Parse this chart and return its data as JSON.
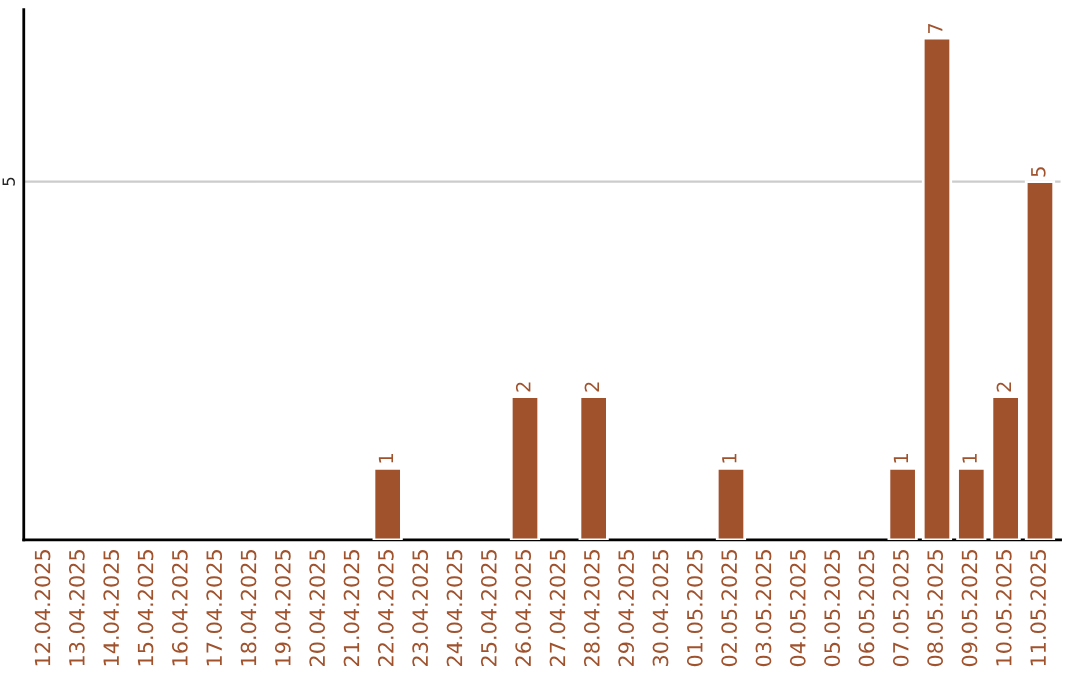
{
  "chart_data": {
    "type": "bar",
    "categories": [
      "12.04.2025",
      "13.04.2025",
      "14.04.2025",
      "15.04.2025",
      "16.04.2025",
      "17.04.2025",
      "18.04.2025",
      "19.04.2025",
      "20.04.2025",
      "21.04.2025",
      "22.04.2025",
      "23.04.2025",
      "24.04.2025",
      "25.04.2025",
      "26.04.2025",
      "27.04.2025",
      "28.04.2025",
      "29.04.2025",
      "30.04.2025",
      "01.05.2025",
      "02.05.2025",
      "03.05.2025",
      "04.05.2025",
      "05.05.2025",
      "06.05.2025",
      "07.05.2025",
      "08.05.2025",
      "09.05.2025",
      "10.05.2025",
      "11.05.2025"
    ],
    "values": [
      null,
      null,
      null,
      null,
      null,
      null,
      null,
      null,
      null,
      null,
      1,
      null,
      null,
      null,
      2,
      null,
      2,
      null,
      null,
      null,
      1,
      null,
      null,
      null,
      null,
      1,
      7,
      1,
      2,
      5
    ],
    "color": "#a0522d",
    "ylim": [
      0,
      7.4
    ],
    "yticks": [
      5
    ],
    "grid": "y",
    "data_labels": true
  }
}
